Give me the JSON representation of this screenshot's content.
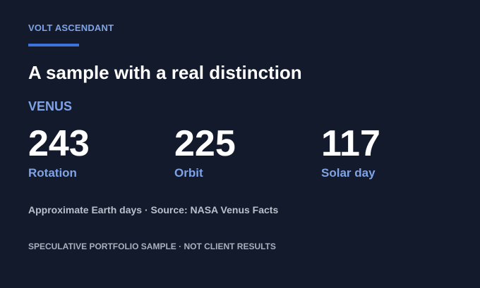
{
  "header": {
    "eyebrow": "VOLT ASCENDANT",
    "title": "A sample with a real distinction"
  },
  "subject": "VENUS",
  "stats": [
    {
      "value": 243,
      "label": "Rotation"
    },
    {
      "value": 225,
      "label": "Orbit"
    },
    {
      "value": 117,
      "label": "Solar day"
    }
  ],
  "note": "Approximate Earth days · Source: NASA Venus Facts",
  "footer": "SPECULATIVE PORTFOLIO SAMPLE · NOT CLIENT RESULTS"
}
